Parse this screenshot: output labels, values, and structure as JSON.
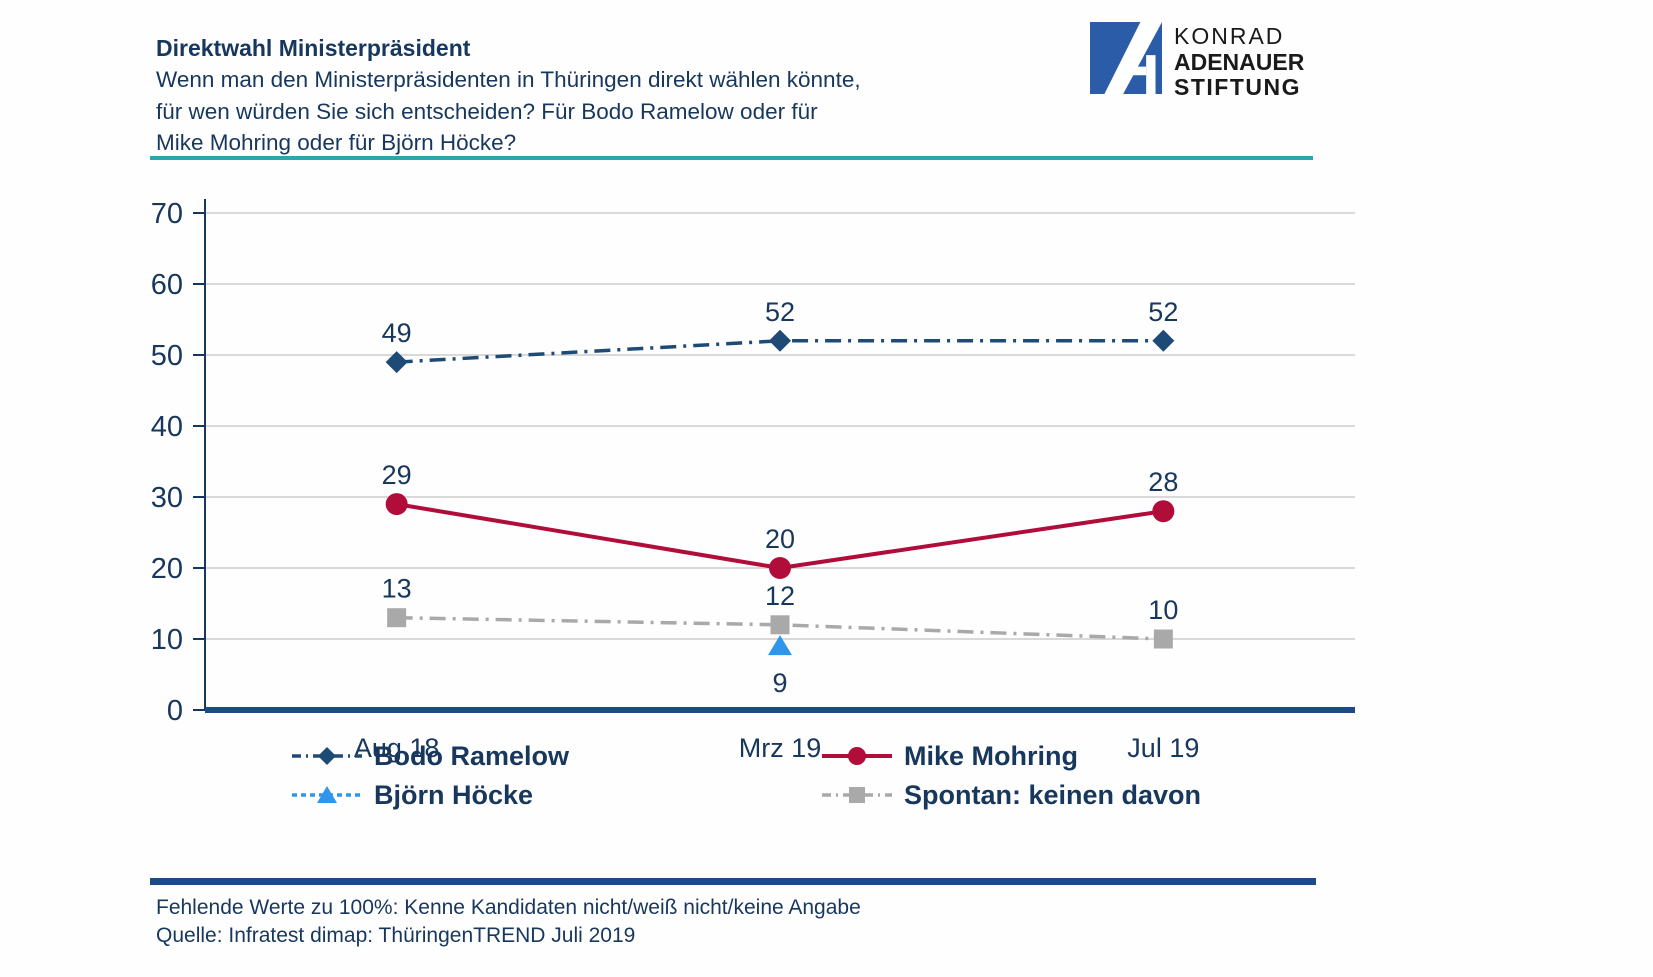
{
  "header": {
    "title": "Direktwahl Ministerpräsident",
    "subtitle_lines": [
      "Wenn man den Ministerpräsidenten in Thüringen direkt wählen könnte,",
      "für wen würden Sie sich entscheiden? Für Bodo Ramelow oder für",
      "Mike Mohring oder für Björn Höcke?"
    ],
    "logo": {
      "line1": "KONRAD",
      "line2": "ADENAUER",
      "line3": "STIFTUNG"
    }
  },
  "colors": {
    "text_navy": "#17375d",
    "axis_navy": "#17375d",
    "baseline_blue": "#1a4b86",
    "grid_gray": "#d9d9d9",
    "teal_rule": "#2ba6ac",
    "logo_blue": "#2b5ca7",
    "ramelow": "#1e4a76",
    "mohring": "#b00d3b",
    "hoecke": "#2f96ec",
    "spontan": "#a9a9a9"
  },
  "chart_data": {
    "type": "line",
    "title": "Direktwahl Ministerpräsident",
    "categories": [
      "Aug 18",
      "Mrz 19",
      "Jul 19"
    ],
    "series": [
      {
        "name": "Bodo Ramelow",
        "values": [
          49,
          52,
          52
        ],
        "color": "#1e4a76",
        "marker": "diamond",
        "dash": "dash-dot",
        "label_position": "above"
      },
      {
        "name": "Mike Mohring",
        "values": [
          29,
          20,
          28
        ],
        "color": "#b00d3b",
        "marker": "circle",
        "dash": "solid",
        "label_position": "above"
      },
      {
        "name": "Björn Höcke",
        "values": [
          null,
          9,
          null
        ],
        "color": "#2f96ec",
        "marker": "triangle",
        "dash": "dash",
        "label_position": "below"
      },
      {
        "name": "Spontan: keinen davon",
        "values": [
          13,
          12,
          10
        ],
        "color": "#a9a9a9",
        "marker": "square",
        "dash": "dash-dot",
        "label_position": "above"
      }
    ],
    "ylim": [
      0,
      70
    ],
    "ytick_step": 10,
    "yticks": [
      0,
      10,
      20,
      30,
      40,
      50,
      60,
      70
    ],
    "grid": true,
    "legend_position": "bottom",
    "legend_rows": [
      [
        "Bodo Ramelow",
        "Mike Mohring"
      ],
      [
        "Björn Höcke",
        "Spontan: keinen davon"
      ]
    ]
  },
  "footer": {
    "note1": "Fehlende Werte zu 100%: Kenne Kandidaten nicht/weiß nicht/keine Angabe",
    "note2": "Quelle: Infratest dimap: ThüringenTREND Juli 2019"
  }
}
